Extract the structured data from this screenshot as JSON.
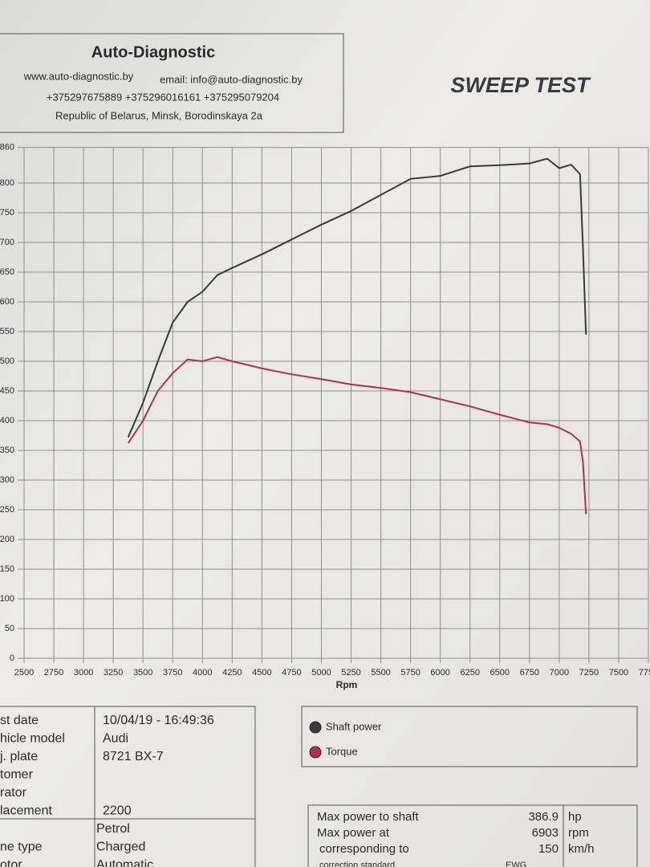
{
  "header": {
    "company": "Auto-Diagnostic",
    "website": "www.auto-diagnostic.by",
    "email": "email: info@auto-diagnostic.by",
    "phones": "+375297675889  +375296016161  +375295079204",
    "address": "Republic of Belarus, Minsk, Borodinskaya 2a"
  },
  "chart_data": {
    "type": "line",
    "title": "SWEEP TEST",
    "x_label": "Rpm",
    "x": [
      3375,
      3500,
      3625,
      3750,
      3875,
      4000,
      4125,
      4250,
      4500,
      4750,
      5000,
      5250,
      5500,
      5750,
      6000,
      6250,
      6500,
      6750,
      6900,
      7000,
      7100,
      7175,
      7200,
      7225
    ],
    "series": [
      {
        "name": "Shaft power",
        "color": "#3a3a3e",
        "values": [
          372,
          430,
          500,
          565,
          600,
          617,
          645,
          657,
          680,
          705,
          730,
          753,
          780,
          807,
          812,
          828,
          830,
          833,
          841,
          825,
          831,
          815,
          690,
          545
        ]
      },
      {
        "name": "Torque",
        "color": "#b0304e",
        "values": [
          362,
          400,
          450,
          480,
          503,
          500,
          507,
          500,
          488,
          478,
          470,
          461,
          455,
          448,
          436,
          424,
          410,
          397,
          394,
          388,
          378,
          365,
          330,
          243
        ]
      }
    ],
    "xlim": [
      2500,
      7750
    ],
    "xticks": [
      2500,
      2750,
      3000,
      3250,
      3500,
      3750,
      4000,
      4250,
      4500,
      4750,
      5000,
      5250,
      5500,
      5750,
      6000,
      6250,
      6500,
      6750,
      7000,
      7250,
      7500,
      7750
    ],
    "ylim": [
      0,
      860
    ],
    "yticks": [
      0,
      50,
      100,
      150,
      200,
      250,
      300,
      350,
      400,
      450,
      500,
      550,
      600,
      650,
      700,
      750,
      800,
      860
    ],
    "grid": true
  },
  "info": [
    {
      "label": "st date",
      "value": "10/04/19 - 16:49:36"
    },
    {
      "label": "hicle model",
      "value": "Audi"
    },
    {
      "label": "j. plate",
      "value": "8721 BX-7"
    },
    {
      "label": "tomer"
    },
    {
      "label": "rator"
    },
    {
      "label": "lacement",
      "value": "2200"
    },
    {
      "value": "Petrol"
    },
    {
      "label": "ne type",
      "value": "Charged"
    },
    {
      "label": "otor",
      "value": "Automatic"
    }
  ],
  "results": [
    {
      "label": "Max power to shaft",
      "value": "386.9",
      "unit": "hp"
    },
    {
      "label": "Max power at",
      "value": "6903",
      "unit": "rpm"
    },
    {
      "label": "corresponding to",
      "value": "150",
      "unit": "km/h"
    },
    {
      "label": "correction standard",
      "value": "EWG"
    }
  ]
}
